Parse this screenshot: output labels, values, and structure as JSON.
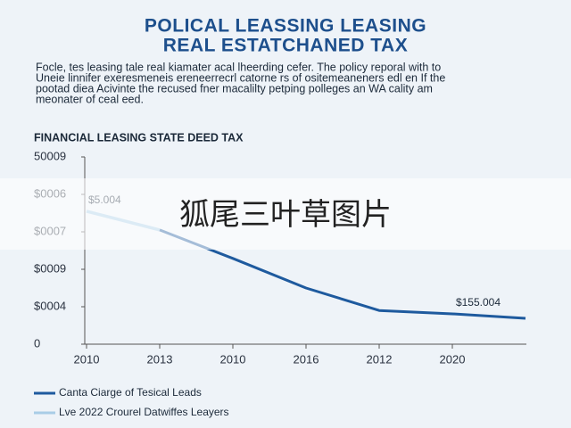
{
  "chart_data": {
    "type": "line",
    "title": [
      "POLICAL LEASSING LEASING",
      "REAL ESTATCHANED TAX"
    ],
    "intro": [
      "Focle, tes leasing tale real kiamater acal lheerding cefer. The policy reporal with to",
      "Uneie linnifer exeresmeneis ereneerrecrl catorne rs  of ositemeaneners edl en If the",
      "pootad diea Acivinte the recused fner macalilty petping polleges an WA cality am",
      "meonater of ceal eed."
    ],
    "chart_title": "FINANCIAL LEASING STATE DEED TAX",
    "categories": [
      "2010",
      "2013",
      "2010",
      "2016",
      "2012",
      "2020",
      null
    ],
    "series": [
      {
        "name": "Canta Ciarge of Tesical Leads",
        "color": "#1e5a9e",
        "values": [
          null,
          3.05,
          2.29,
          1.5,
          0.9,
          0.81,
          0.69
        ]
      },
      {
        "name": "Lve 2022 Crourel Datwiffes Leayers",
        "color": "#a9cde6",
        "values": [
          3.55,
          3.05,
          null,
          null,
          null,
          null,
          null
        ]
      }
    ],
    "ylim": [
      0,
      5
    ],
    "yticks": [
      {
        "value": 0,
        "label": "0"
      },
      {
        "value": 1,
        "label": "$0004"
      },
      {
        "value": 2,
        "label": "$0009"
      },
      {
        "value": 3,
        "label": "$0007"
      },
      {
        "value": 4,
        "label": "$0006"
      },
      {
        "value": 5,
        "label": "50009"
      }
    ],
    "annotations": [
      "$5.004",
      "$155.004"
    ],
    "grid": false,
    "watermark": "狐尾三叶草图片"
  }
}
